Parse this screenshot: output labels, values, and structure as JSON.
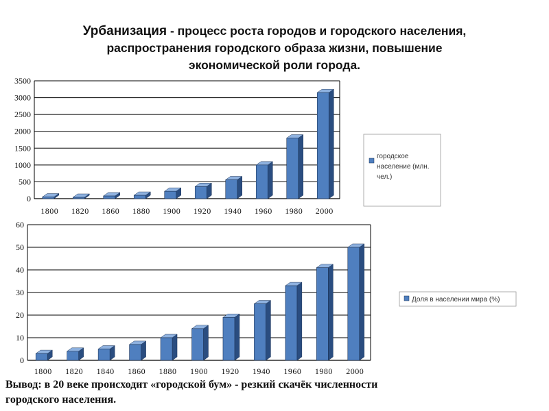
{
  "title": {
    "main": "Урбанизация",
    "line1_rest": " - процесс роста городов и городского населения,",
    "line2": "распространения городского образа жизни, повышение",
    "line3": "экономической роли города."
  },
  "conclusion": {
    "line1": "Вывод: в 20 веке происходит «городской бум» - резкий скачёк численности",
    "line2": "городского населения."
  },
  "colors": {
    "bar_front": "#4f7fbf",
    "bar_side": "#2a4d80",
    "bar_top": "#8fb2e0",
    "grid": "#000000"
  },
  "chart_data": [
    {
      "type": "bar",
      "categories": [
        "1800",
        "1820",
        "1860",
        "1880",
        "1900",
        "1920",
        "1940",
        "1960",
        "1980",
        "2000"
      ],
      "series": [
        {
          "name": "городское население (млн. чел.)",
          "values": [
            50,
            40,
            80,
            100,
            220,
            360,
            560,
            1000,
            1800,
            3150
          ]
        }
      ],
      "ylim": [
        0,
        3500
      ],
      "yticks": [
        "0",
        "500",
        "1000",
        "1500",
        "2000",
        "2500",
        "3000",
        "3500"
      ],
      "grid": true,
      "legend": "right"
    },
    {
      "type": "bar",
      "categories": [
        "1800",
        "1820",
        "1840",
        "1860",
        "1880",
        "1900",
        "1920",
        "1940",
        "1960",
        "1980",
        "2000"
      ],
      "series": [
        {
          "name": "Доля в населении мира (%)",
          "values": [
            3,
            4,
            5,
            7,
            10,
            14,
            19,
            25,
            33,
            41,
            50
          ]
        }
      ],
      "ylim": [
        0,
        60
      ],
      "yticks": [
        "0",
        "10",
        "20",
        "30",
        "40",
        "50",
        "60"
      ],
      "grid": true,
      "legend": "right"
    }
  ]
}
